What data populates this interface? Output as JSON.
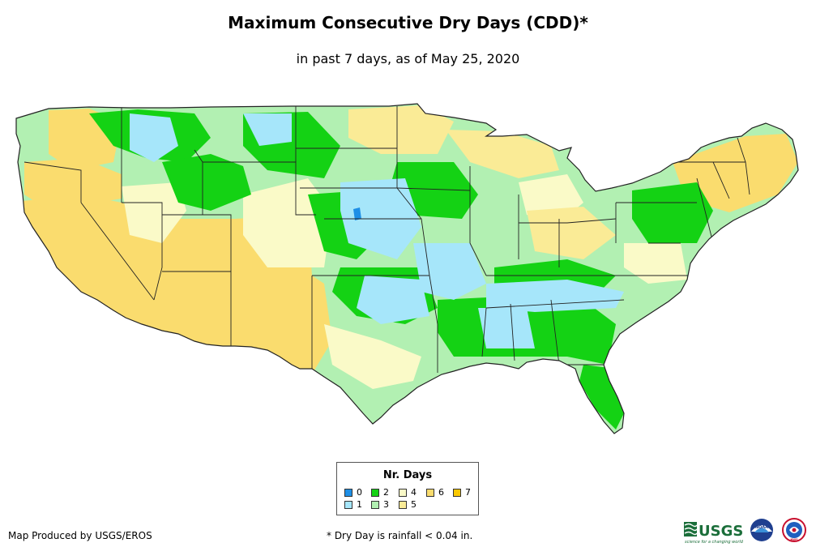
{
  "title": "Maximum Consecutive Dry Days (CDD)*",
  "subtitle": "in past 7 days, as of May 25, 2020",
  "legend": {
    "title": "Nr. Days",
    "items": [
      {
        "label": "0",
        "color": "#1e8fe6"
      },
      {
        "label": "1",
        "color": "#a6e6fa"
      },
      {
        "label": "2",
        "color": "#14d214"
      },
      {
        "label": "3",
        "color": "#b2f0b2"
      },
      {
        "label": "4",
        "color": "#fafac8"
      },
      {
        "label": "5",
        "color": "#faeb96"
      },
      {
        "label": "6",
        "color": "#fadc6e"
      },
      {
        "label": "7",
        "color": "#fac800"
      }
    ]
  },
  "credits": {
    "producer": "Map Produced by USGS/EROS",
    "footnote": "* Dry Day is rainfall < 0.04 in."
  },
  "logos": {
    "usgs": "USGS",
    "usgs_tagline": "science for a changing world",
    "noaa": "NOAA",
    "nws": "NWS"
  },
  "colors": {
    "border": "#222222",
    "background": "#ffffff"
  }
}
